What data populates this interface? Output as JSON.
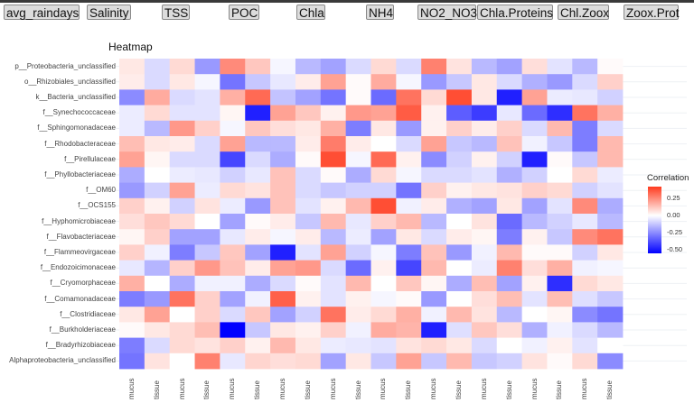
{
  "variables": [
    "avg_raindays",
    "Salinity",
    "TSS",
    "POC",
    "Chla",
    "NH4",
    "NO2_NO3",
    "Chla.Proteins",
    "Chl.Zoox",
    "Zoox.Prot"
  ],
  "chart_data": {
    "type": "heatmap",
    "title": "Heatmap",
    "columns": [
      "mucus",
      "tissue",
      "mucus",
      "tissue",
      "mucus",
      "tissue",
      "mucus",
      "tissue",
      "mucus",
      "tissue",
      "mucus",
      "tissue",
      "mucus",
      "tissue",
      "mucus",
      "tissue",
      "mucus",
      "tissue",
      "mucus",
      "tissue"
    ],
    "rows": [
      "p__Proteobacteria_unclassified",
      "o__Rhizobiales_unclassified",
      "k__Bacteria_unclassified",
      "f__Synechococcaceae",
      "f__Sphingomonadaceae",
      "f__Rhodobacteraceae",
      "f__Pirellulaceae",
      "f__Phyllobacteriaceae",
      "f__OM60",
      "f__OCS155",
      "f__Hyphomicrobiaceae",
      "f__Flavobacteriaceae",
      "f__Flammeovirgaceae",
      "f__Endozoicimonaceae",
      "f__Cryomorphaceae",
      "f__Comamonadaceae",
      "f__Clostridiaceae",
      "f__Burkholderiaceae",
      "f__Bradyrhizobiaceae",
      "Alphaproteobacteria_unclassified"
    ],
    "values": [
      [
        0.05,
        -0.08,
        0.08,
        -0.22,
        0.25,
        0.12,
        -0.02,
        -0.15,
        -0.2,
        -0.08,
        0.08,
        -0.08,
        0.27,
        0.06,
        -0.15,
        -0.2,
        0.07,
        -0.06,
        -0.15,
        0.01
      ],
      [
        0.04,
        -0.08,
        0.05,
        -0.02,
        -0.3,
        -0.12,
        -0.05,
        0.04,
        0.2,
        0.01,
        0.18,
        -0.02,
        -0.22,
        -0.12,
        0.05,
        -0.08,
        -0.17,
        -0.22,
        -0.08,
        0.1
      ],
      [
        -0.25,
        0.18,
        -0.08,
        -0.06,
        0.17,
        0.32,
        -0.13,
        -0.2,
        -0.3,
        0.01,
        -0.32,
        0.3,
        0.08,
        0.38,
        0.05,
        -0.48,
        0.2,
        -0.04,
        -0.05,
        -0.1
      ],
      [
        -0.04,
        0.08,
        -0.06,
        -0.06,
        0.02,
        -0.48,
        0.2,
        0.12,
        0.03,
        0.22,
        0.2,
        0.35,
        0.03,
        -0.35,
        -0.42,
        -0.05,
        -0.32,
        -0.45,
        0.3,
        0.17
      ],
      [
        -0.04,
        -0.15,
        0.22,
        0.1,
        -0.02,
        0.12,
        0.07,
        0.05,
        0.17,
        -0.28,
        0.05,
        -0.22,
        0.03,
        0.1,
        0.04,
        0.1,
        -0.08,
        0.15,
        -0.28,
        -0.08
      ],
      [
        0.14,
        0.05,
        0.04,
        -0.08,
        0.2,
        -0.15,
        -0.15,
        0.04,
        0.28,
        0.04,
        0,
        -0.08,
        0.2,
        -0.12,
        -0.15,
        0.13,
        -0.03,
        -0.12,
        -0.28,
        0.15
      ],
      [
        0.2,
        0.02,
        -0.08,
        -0.08,
        -0.4,
        -0.08,
        -0.18,
        0.01,
        0.38,
        -0.02,
        0.32,
        0.03,
        -0.25,
        -0.1,
        0.03,
        -0.1,
        -0.48,
        0.01,
        -0.12,
        0.15
      ],
      [
        -0.18,
        0,
        -0.04,
        -0.05,
        -0.1,
        -0.05,
        0.13,
        -0.08,
        0.01,
        -0.18,
        0.08,
        -0.02,
        -0.08,
        -0.08,
        -0.06,
        -0.17,
        -0.1,
        0,
        0.08,
        -0.04
      ],
      [
        -0.22,
        -0.1,
        0.2,
        -0.04,
        0.08,
        0.06,
        0.13,
        -0.08,
        -0.12,
        -0.1,
        -0.1,
        -0.3,
        0.1,
        0.03,
        0.05,
        0.06,
        0.1,
        0.08,
        -0.1,
        -0.06
      ],
      [
        0.1,
        0.03,
        -0.1,
        0.06,
        -0.04,
        -0.22,
        0.13,
        -0.06,
        0.03,
        0.15,
        0.38,
        -0.03,
        0.04,
        -0.17,
        -0.2,
        0.05,
        -0.2,
        -0.06,
        0.25,
        -0.18
      ],
      [
        0.07,
        0.12,
        0.08,
        0,
        -0.2,
        0.01,
        0.04,
        -0.12,
        0.15,
        -0.05,
        0.1,
        0.15,
        -0.15,
        0,
        0.06,
        -0.32,
        -0.15,
        -0.1,
        -0.05,
        -0.15
      ],
      [
        0.02,
        0.1,
        -0.2,
        -0.2,
        -0.05,
        0.04,
        -0.02,
        0.04,
        -0.15,
        -0.04,
        -0.2,
        0.05,
        -0.08,
        0.04,
        0.02,
        -0.28,
        0.03,
        -0.12,
        0.25,
        0.3
      ],
      [
        0.1,
        -0.03,
        -0.28,
        -0.12,
        0.12,
        -0.2,
        -0.48,
        -0.06,
        0.2,
        -0.1,
        -0.02,
        -0.28,
        0.13,
        -0.22,
        -0.03,
        0.15,
        0.01,
        0.01,
        -0.1,
        0.05
      ],
      [
        -0.05,
        -0.16,
        0.1,
        0.22,
        0.13,
        0.04,
        0.2,
        0.22,
        -0.08,
        -0.32,
        0.03,
        -0.4,
        0.15,
        0,
        -0.04,
        0.27,
        0.07,
        0.17,
        -0.03,
        -0.02
      ],
      [
        0.17,
        0,
        -0.18,
        -0.03,
        -0.03,
        -0.18,
        -0.08,
        0.01,
        -0.06,
        0.15,
        0,
        0.12,
        0.02,
        -0.18,
        0.14,
        -0.2,
        0.03,
        -0.45,
        0.08,
        0.05
      ],
      [
        -0.28,
        -0.22,
        0.3,
        0.1,
        -0.2,
        -0.03,
        0.34,
        0.03,
        -0.06,
        0.03,
        -0.02,
        0.01,
        -0.22,
        0,
        0.07,
        0.14,
        -0.06,
        0.14,
        -0.07,
        -0.12
      ],
      [
        0.05,
        0.2,
        0,
        0.1,
        -0.08,
        0.12,
        -0.2,
        -0.1,
        0.3,
        0.04,
        0.08,
        0.17,
        -0.03,
        0.15,
        0.06,
        -0.15,
        0,
        0.02,
        -0.25,
        -0.3
      ],
      [
        0.01,
        0.05,
        0.08,
        0.14,
        -0.55,
        -0.12,
        0.05,
        0.03,
        0.1,
        -0.03,
        0.18,
        0.16,
        -0.48,
        -0.07,
        0.12,
        0.07,
        -0.17,
        -0.03,
        -0.08,
        -0.15
      ],
      [
        -0.28,
        -0.08,
        0.08,
        0.06,
        0.1,
        0.03,
        0.15,
        0.05,
        -0.04,
        -0.05,
        -0.06,
        0.06,
        0.08,
        0.05,
        -0.08,
        0,
        -0.03,
        0.03,
        -0.06,
        0
      ],
      [
        -0.3,
        0.06,
        0,
        0.27,
        -0.05,
        0.09,
        0.07,
        0.08,
        -0.2,
        0.05,
        -0.12,
        0.2,
        -0.12,
        0.15,
        -0.12,
        -0.1,
        0.06,
        0.01,
        0.08,
        -0.25
      ]
    ],
    "legend": {
      "title": "Correlation",
      "ticks": [
        "0.25",
        "0.00",
        "-0.25",
        "-0.50"
      ],
      "tick_values": [
        0.25,
        0,
        -0.25,
        -0.5
      ],
      "range": [
        -0.55,
        0.42
      ],
      "placement": "right"
    },
    "colors": {
      "high": "#ff3b1f",
      "mid": "#ffffff",
      "low": "#0000ff"
    }
  }
}
